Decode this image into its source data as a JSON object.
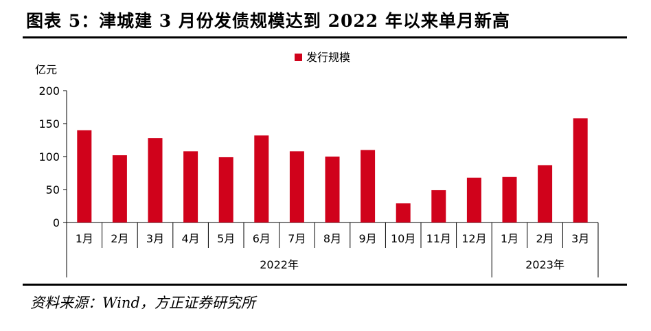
{
  "title": "图表 5：津城建 3 月份发债规模达到 2022 年以来单月新高",
  "source": "资料来源：Wind，方正证券研究所",
  "chart_data": {
    "type": "bar",
    "unit_label": "亿元",
    "categories": [
      "1月",
      "2月",
      "3月",
      "4月",
      "5月",
      "6月",
      "7月",
      "8月",
      "9月",
      "10月",
      "11月",
      "12月",
      "1月",
      "2月",
      "3月"
    ],
    "groups": [
      {
        "label": "2022年",
        "count": 12
      },
      {
        "label": "2023年",
        "count": 3
      }
    ],
    "series": [
      {
        "name": "发行规模",
        "color": "#d0021b",
        "values": [
          140,
          102,
          128,
          108,
          99,
          132,
          108,
          100,
          110,
          29,
          49,
          68,
          69,
          87,
          158
        ]
      }
    ],
    "yticks": [
      0,
      50,
      100,
      150,
      200
    ],
    "ylim": [
      0,
      200
    ],
    "legend_position": "top-center",
    "grid": false
  }
}
